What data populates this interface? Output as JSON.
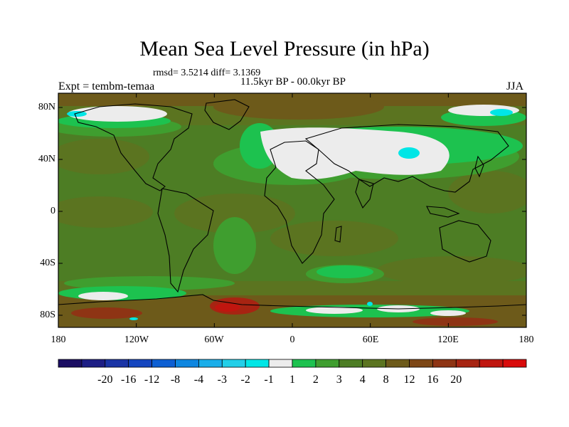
{
  "title": "Mean Sea Level Pressure (in hPa)",
  "stats": "rmsd= 3.5214 diff= 3.1369",
  "subtitle": "11.5kyr BP - 00.0kyr BP",
  "experiment": "Expt = tembm-temaa",
  "season": "JJA",
  "lat_labels": [
    "80N",
    "40N",
    "0",
    "40S",
    "80S"
  ],
  "lon_labels": [
    "180",
    "120W",
    "60W",
    "0",
    "60E",
    "120E",
    "180"
  ],
  "colorbar": {
    "colors": [
      "#1b0e63",
      "#1d1e85",
      "#1a34a6",
      "#1546c0",
      "#0d5fd3",
      "#0e86e0",
      "#19aeea",
      "#22cfe8",
      "#00e6e6",
      "#ececec",
      "#1dc24f",
      "#3f9e2f",
      "#4d7d24",
      "#5b7420",
      "#6d5a1a",
      "#7d4716",
      "#8e3414",
      "#a72412",
      "#c0160f",
      "#d90b0b"
    ],
    "labels": [
      "-20",
      "-16",
      "-12",
      "-8",
      "-4",
      "-3",
      "-2",
      "-1",
      "1",
      "2",
      "3",
      "4",
      "8",
      "12",
      "16",
      "20"
    ]
  }
}
